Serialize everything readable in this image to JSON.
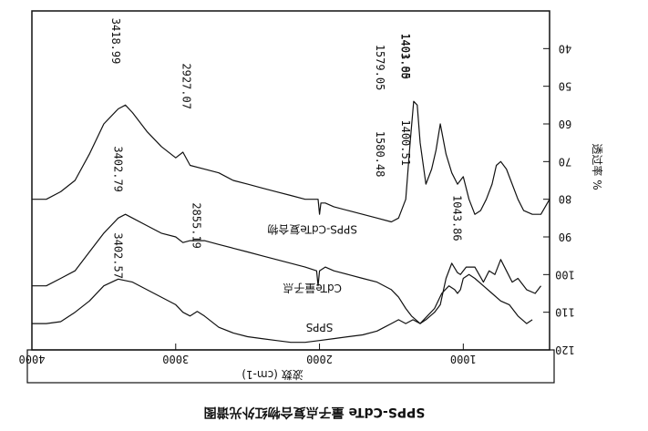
{
  "chart_data": {
    "type": "line",
    "orientation": "rotated-180",
    "xlabel": "波数 (cm-1)",
    "ylabel": "透过率 %",
    "caption": "SPPS-CdTe 量子点复合物红外光谱图",
    "xlim": [
      400,
      4000
    ],
    "ylim": [
      30,
      120
    ],
    "x_ticks": [
      1000,
      2000,
      3000,
      4000
    ],
    "y_ticks": [
      40,
      50,
      60,
      70,
      80,
      90,
      100,
      110,
      120
    ],
    "grid": false,
    "series": [
      {
        "name": "SPPS",
        "color": "#111111",
        "points": [
          [
            520,
            112
          ],
          [
            560,
            113
          ],
          [
            620,
            111
          ],
          [
            680,
            108
          ],
          [
            740,
            107
          ],
          [
            800,
            105
          ],
          [
            860,
            103
          ],
          [
            920,
            101
          ],
          [
            960,
            100
          ],
          [
            1000,
            101
          ],
          [
            1020,
            104
          ],
          [
            1040,
            105
          ],
          [
            1060,
            104
          ],
          [
            1100,
            103
          ],
          [
            1150,
            105
          ],
          [
            1200,
            109
          ],
          [
            1250,
            111
          ],
          [
            1300,
            113
          ],
          [
            1350,
            112
          ],
          [
            1400,
            113
          ],
          [
            1450,
            112
          ],
          [
            1500,
            113
          ],
          [
            1550,
            114
          ],
          [
            1600,
            115
          ],
          [
            1700,
            116
          ],
          [
            1800,
            116.5
          ],
          [
            1900,
            117
          ],
          [
            2000,
            117.5
          ],
          [
            2100,
            118
          ],
          [
            2200,
            118
          ],
          [
            2300,
            117.5
          ],
          [
            2400,
            117
          ],
          [
            2500,
            116.5
          ],
          [
            2600,
            115.5
          ],
          [
            2700,
            114
          ],
          [
            2800,
            111
          ],
          [
            2850,
            109.8
          ],
          [
            2900,
            111
          ],
          [
            2950,
            110
          ],
          [
            3000,
            108
          ],
          [
            3100,
            106
          ],
          [
            3200,
            104
          ],
          [
            3300,
            102
          ],
          [
            3400,
            101.2
          ],
          [
            3500,
            103
          ],
          [
            3600,
            107
          ],
          [
            3700,
            110
          ],
          [
            3800,
            112.5
          ],
          [
            3900,
            113
          ],
          [
            4000,
            113
          ]
        ]
      },
      {
        "name": "CdTe量子点",
        "color": "#111111",
        "points": [
          [
            460,
            103
          ],
          [
            500,
            105
          ],
          [
            560,
            104
          ],
          [
            620,
            101
          ],
          [
            660,
            102
          ],
          [
            700,
            99
          ],
          [
            740,
            96
          ],
          [
            780,
            100
          ],
          [
            820,
            99
          ],
          [
            860,
            102
          ],
          [
            920,
            98
          ],
          [
            980,
            98
          ],
          [
            1020,
            100
          ],
          [
            1040,
            99.5
          ],
          [
            1080,
            97
          ],
          [
            1120,
            101
          ],
          [
            1160,
            108
          ],
          [
            1200,
            110
          ],
          [
            1260,
            112
          ],
          [
            1300,
            113
          ],
          [
            1360,
            111
          ],
          [
            1400,
            109
          ],
          [
            1450,
            106
          ],
          [
            1500,
            104
          ],
          [
            1600,
            102
          ],
          [
            1700,
            101
          ],
          [
            1800,
            100
          ],
          [
            1900,
            99
          ],
          [
            1960,
            98
          ],
          [
            2000,
            99
          ],
          [
            2010,
            103
          ],
          [
            2020,
            99
          ],
          [
            2100,
            98
          ],
          [
            2200,
            97
          ],
          [
            2300,
            96
          ],
          [
            2400,
            95
          ],
          [
            2500,
            94
          ],
          [
            2600,
            93
          ],
          [
            2700,
            92
          ],
          [
            2800,
            91
          ],
          [
            2900,
            91
          ],
          [
            2950,
            91.5
          ],
          [
            3000,
            90
          ],
          [
            3100,
            89
          ],
          [
            3200,
            87
          ],
          [
            3300,
            85
          ],
          [
            3350,
            84
          ],
          [
            3400,
            85
          ],
          [
            3500,
            89
          ],
          [
            3600,
            94
          ],
          [
            3700,
            99
          ],
          [
            3800,
            101
          ],
          [
            3900,
            103
          ],
          [
            4000,
            103
          ]
        ]
      },
      {
        "name": "SPPS-CdTe复合物",
        "color": "#111111",
        "points": [
          [
            400,
            80
          ],
          [
            460,
            84
          ],
          [
            520,
            84
          ],
          [
            580,
            83
          ],
          [
            620,
            80
          ],
          [
            660,
            76
          ],
          [
            700,
            72
          ],
          [
            740,
            70
          ],
          [
            770,
            71
          ],
          [
            800,
            76
          ],
          [
            840,
            80
          ],
          [
            880,
            83
          ],
          [
            920,
            84
          ],
          [
            960,
            80
          ],
          [
            1000,
            74
          ],
          [
            1040,
            76
          ],
          [
            1080,
            73
          ],
          [
            1120,
            68
          ],
          [
            1160,
            60
          ],
          [
            1190,
            67
          ],
          [
            1220,
            72
          ],
          [
            1260,
            76
          ],
          [
            1300,
            65
          ],
          [
            1320,
            55
          ],
          [
            1345,
            54
          ],
          [
            1370,
            65
          ],
          [
            1400,
            80
          ],
          [
            1450,
            85
          ],
          [
            1500,
            86
          ],
          [
            1600,
            85
          ],
          [
            1700,
            84
          ],
          [
            1800,
            83
          ],
          [
            1900,
            82
          ],
          [
            1960,
            81
          ],
          [
            1990,
            81
          ],
          [
            2000,
            84
          ],
          [
            2010,
            80
          ],
          [
            2100,
            80
          ],
          [
            2200,
            79
          ],
          [
            2300,
            78
          ],
          [
            2400,
            77
          ],
          [
            2500,
            76
          ],
          [
            2600,
            75
          ],
          [
            2700,
            73
          ],
          [
            2800,
            72
          ],
          [
            2900,
            71
          ],
          [
            2950,
            67.5
          ],
          [
            3000,
            69
          ],
          [
            3100,
            66
          ],
          [
            3200,
            62
          ],
          [
            3300,
            57
          ],
          [
            3350,
            55
          ],
          [
            3400,
            56
          ],
          [
            3500,
            60
          ],
          [
            3600,
            68
          ],
          [
            3700,
            75
          ],
          [
            3800,
            78
          ],
          [
            3900,
            80
          ],
          [
            4000,
            80
          ]
        ]
      }
    ],
    "annotations": [
      {
        "text": "1043.86",
        "x": 1043,
        "y": 85
      },
      {
        "text": "1401.85",
        "x": 1401,
        "y": 42
      },
      {
        "text": "1403.00",
        "x": 1403,
        "y": 42
      },
      {
        "text": "1400.51",
        "x": 1400,
        "y": 65
      },
      {
        "text": "1580.48",
        "x": 1580,
        "y": 68
      },
      {
        "text": "1579.05",
        "x": 1579,
        "y": 45
      },
      {
        "text": "2855.19",
        "x": 2855,
        "y": 87
      },
      {
        "text": "2927.07",
        "x": 2927,
        "y": 50
      },
      {
        "text": "3402.79",
        "x": 3402,
        "y": 72
      },
      {
        "text": "3402.57",
        "x": 3402,
        "y": 95
      },
      {
        "text": "3418.99",
        "x": 3418,
        "y": 38
      }
    ]
  }
}
